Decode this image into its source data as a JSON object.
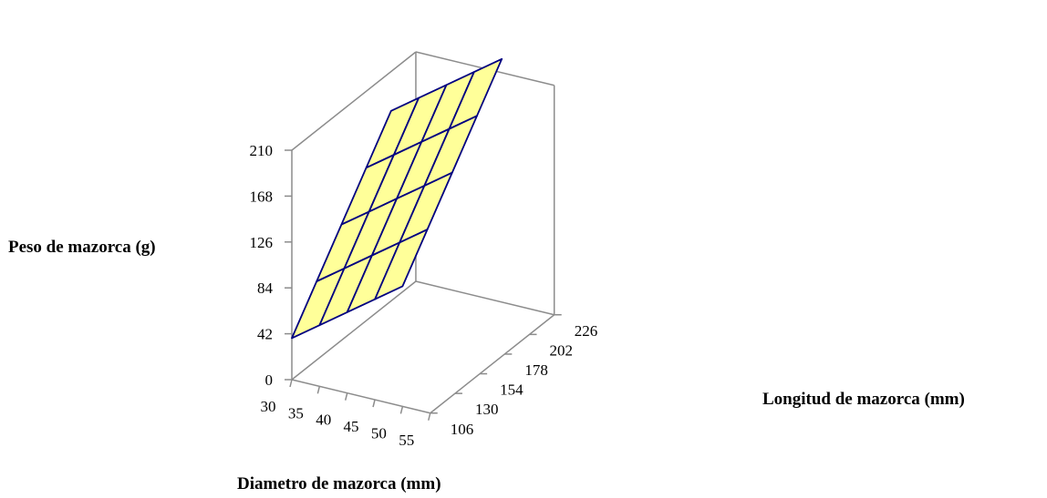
{
  "chart_data": {
    "type": "surface",
    "title": "",
    "xlabel": "Diametro de mazorca (mm)",
    "ylabel": "Longitud de mazorca (mm)",
    "zlabel": "Peso de mazorca (g)",
    "x_ticks": [
      "30",
      "35",
      "40",
      "45",
      "50",
      "55"
    ],
    "y_ticks": [
      "106",
      "130",
      "154",
      "178",
      "202",
      "226"
    ],
    "z_ticks": [
      "0",
      "42",
      "84",
      "126",
      "168",
      "210"
    ],
    "xlim": [
      30,
      55
    ],
    "ylim": [
      106,
      226
    ],
    "zlim": [
      0,
      210
    ],
    "x": [
      30,
      35,
      40,
      45,
      50
    ],
    "y": [
      106,
      130,
      154,
      178,
      202
    ],
    "z": [
      [
        38,
        72,
        106,
        140,
        174
      ],
      [
        56,
        90,
        124,
        158,
        192
      ],
      [
        74,
        108,
        142,
        176,
        210
      ],
      [
        92,
        126,
        160,
        194,
        228
      ],
      [
        110,
        144,
        178,
        212,
        246
      ]
    ],
    "surface_color": "#ffff99",
    "line_color": "#000080",
    "grid": true
  }
}
